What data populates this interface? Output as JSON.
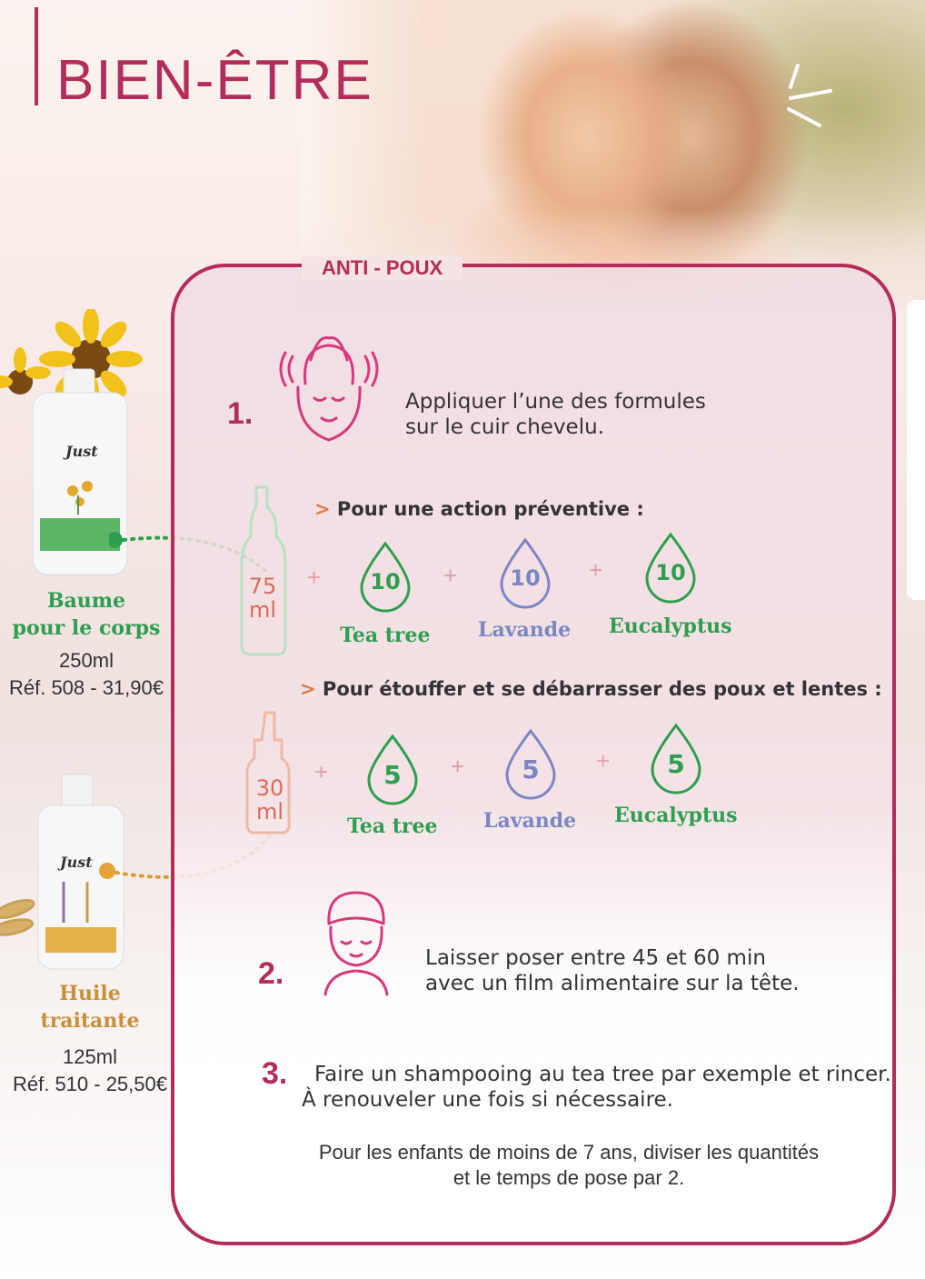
{
  "header": {
    "title": "BIEN-ÊTRE"
  },
  "card": {
    "title": "ANTI - POUX"
  },
  "steps": [
    {
      "number": "1.",
      "text_line1": "Appliquer l’une des formules",
      "text_line2": "sur le cuir chevelu."
    },
    {
      "number": "2.",
      "text_line1": "Laisser poser entre 45 et 60 min",
      "text_line2": "avec un film alimentaire sur la tête."
    },
    {
      "number": "3.",
      "text_line1": "Faire un shampooing au tea tree par exemple et rincer.",
      "text_line2": "À renouveler une fois si nécessaire."
    }
  ],
  "formulas": [
    {
      "heading": "Pour une action préventive :",
      "bottle_qty": "75",
      "bottle_unit": "ml",
      "oils": [
        {
          "drops": "10",
          "name": "Tea tree"
        },
        {
          "drops": "10",
          "name": "Lavande"
        },
        {
          "drops": "10",
          "name": "Eucalyptus"
        }
      ]
    },
    {
      "heading": "Pour étouffer et se débarrasser des poux et lentes :",
      "bottle_qty": "30",
      "bottle_unit": "ml",
      "oils": [
        {
          "drops": "5",
          "name": "Tea tree"
        },
        {
          "drops": "5",
          "name": "Lavande"
        },
        {
          "drops": "5",
          "name": "Eucalyptus"
        }
      ]
    }
  ],
  "plus_sign": "+",
  "note": {
    "line1": "Pour les enfants de moins de 7 ans, diviser les quantités",
    "line2": "et le temps de pose par 2."
  },
  "products": [
    {
      "name_line1": "Baume",
      "name_line2": "pour le corps",
      "volume": "250ml",
      "ref": "Réf. 508 - 31,90€",
      "brand": "Just"
    },
    {
      "name_line1": "Huile",
      "name_line2": "traitante",
      "volume": "125ml",
      "ref": "Réf. 510 - 25,50€",
      "brand": "Just"
    }
  ],
  "colors": {
    "brand": "#b42c5a",
    "tea_tree": "#2e9e4f",
    "lavande": "#7b86c4",
    "eucalyptus": "#2e9e4f",
    "baume": "#2e9e4f",
    "huile": "#c89038"
  }
}
